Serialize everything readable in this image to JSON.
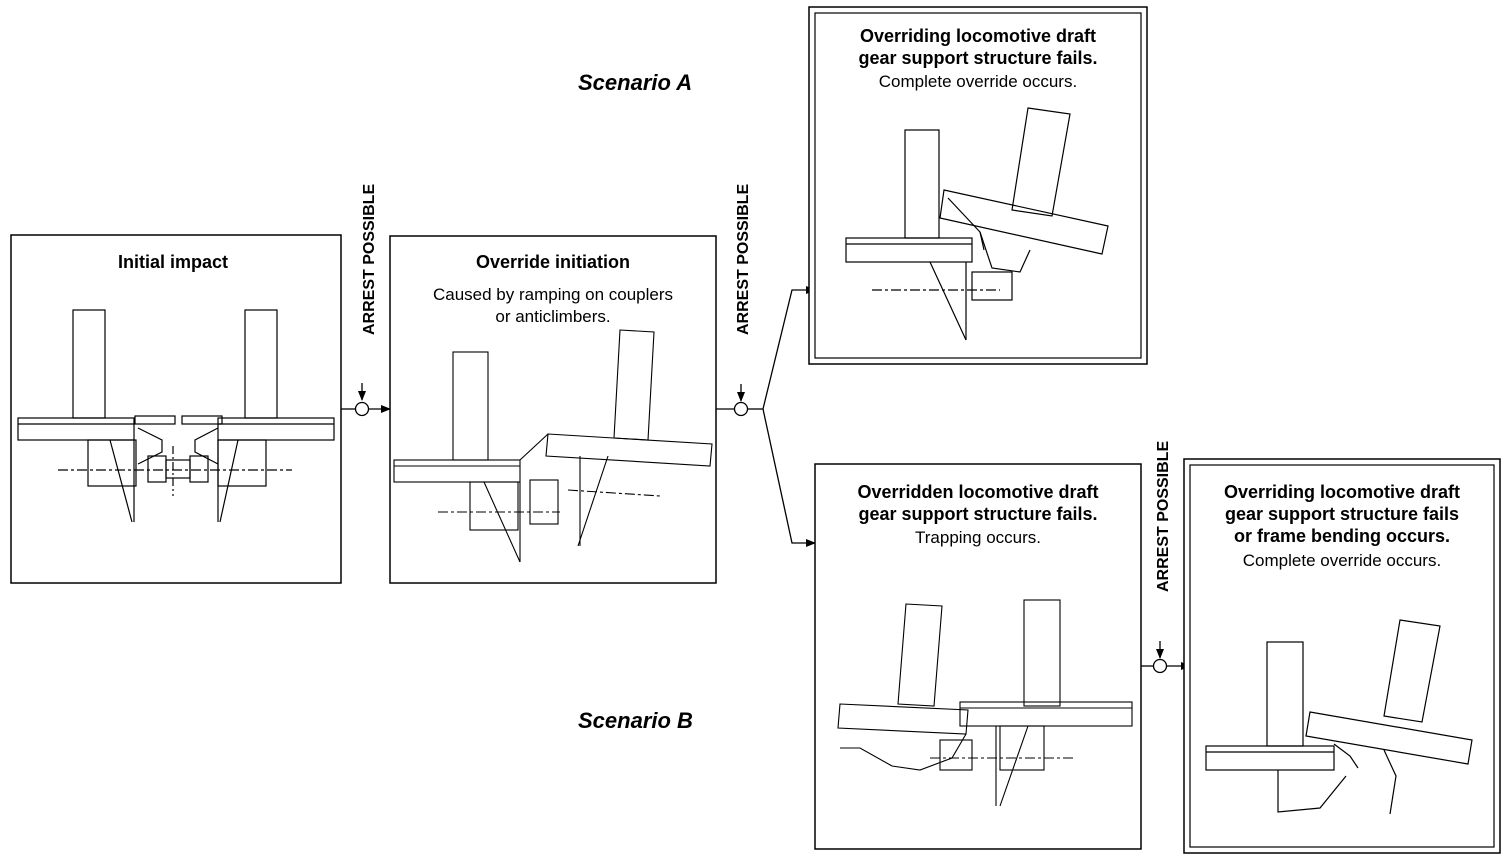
{
  "scenario_a_label": "Scenario A",
  "scenario_b_label": "Scenario B",
  "arrest_label": "ARREST POSSIBLE",
  "panels": {
    "initial": {
      "title": "Initial impact"
    },
    "initiation": {
      "title": "Override initiation",
      "body": [
        "Caused by ramping on couplers",
        "or anticlimbers."
      ]
    },
    "a_override": {
      "title": [
        "Overriding locomotive draft",
        "gear support structure fails."
      ],
      "body": [
        "Complete override occurs."
      ]
    },
    "b_trapping": {
      "title": [
        "Overridden locomotive draft",
        "gear support structure fails."
      ],
      "body": [
        "Trapping occurs."
      ]
    },
    "b_override": {
      "title": [
        "Overriding locomotive draft",
        "gear support structure fails",
        "or frame bending occurs."
      ],
      "body": [
        "Complete override occurs."
      ]
    }
  }
}
